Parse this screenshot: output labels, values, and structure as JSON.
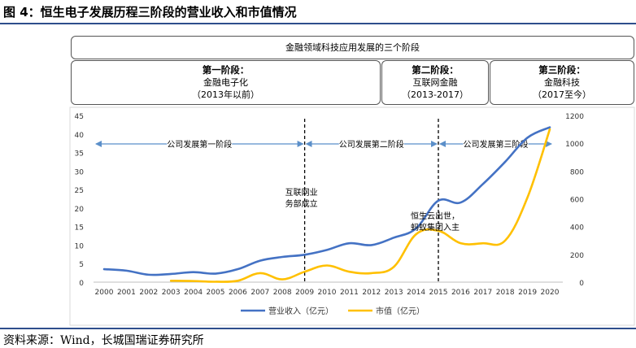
{
  "figure_title": "图 4：恒生电子发展历程三阶段的营业收入和市值情况",
  "source": "资料来源：Wind，长城国瑞证券研究所",
  "stages_header": "金融领域科技应用发展的三个阶段",
  "stages": [
    {
      "name": "第一阶段：",
      "label": "金融电子化",
      "period": "（2013年以前）"
    },
    {
      "name": "第二阶段：",
      "label": "互联网金融",
      "period": "（2013-2017）"
    },
    {
      "name": "第三阶段：",
      "label": "金融科技",
      "period": "（2017至今）"
    }
  ],
  "colors": {
    "revenue": "#4472c4",
    "market_cap": "#ffc000",
    "arrow": "#5b8fc9"
  },
  "chart_data": {
    "type": "line",
    "categories": [
      "2000",
      "2001",
      "2002",
      "2003",
      "2004",
      "2005",
      "2006",
      "2007",
      "2008",
      "2009",
      "2010",
      "2011",
      "2012",
      "2013",
      "2014",
      "2015",
      "2016",
      "2017",
      "2018",
      "2019",
      "2020"
    ],
    "series": [
      {
        "name": "营业收入（亿元）",
        "axis": "left",
        "values": [
          3.5,
          3.1,
          2.0,
          2.2,
          2.7,
          2.3,
          3.5,
          5.8,
          6.8,
          7.4,
          8.7,
          10.5,
          10.0,
          12.0,
          14.5,
          22.0,
          21.5,
          26.5,
          32.5,
          39.0,
          41.8
        ]
      },
      {
        "name": "市值（亿元）",
        "axis": "right",
        "values": [
          null,
          null,
          null,
          10,
          8,
          3,
          10,
          65,
          20,
          75,
          120,
          75,
          65,
          110,
          345,
          370,
          280,
          280,
          300,
          610,
          1100
        ]
      }
    ],
    "left_axis": {
      "min": 0,
      "max": 45,
      "ticks": [
        "0",
        "5",
        "10",
        "15",
        "20",
        "25",
        "30",
        "35",
        "40",
        "45"
      ]
    },
    "right_axis": {
      "min": 0,
      "max": 1200,
      "ticks": [
        "0",
        "200",
        "400",
        "600",
        "800",
        "1000",
        "1200"
      ]
    },
    "phases": [
      "公司发展第一阶段",
      "公司发展第二阶段",
      "公司发展第三阶段"
    ],
    "annotations": [
      {
        "line1": "互联网业",
        "line2": "务部成立",
        "year": "2009"
      },
      {
        "line1": "恒生云出世，",
        "line2": "蚂蚁集团入主",
        "year": "2015"
      }
    ],
    "legend": [
      "营业收入（亿元）",
      "市值（亿元）"
    ]
  }
}
